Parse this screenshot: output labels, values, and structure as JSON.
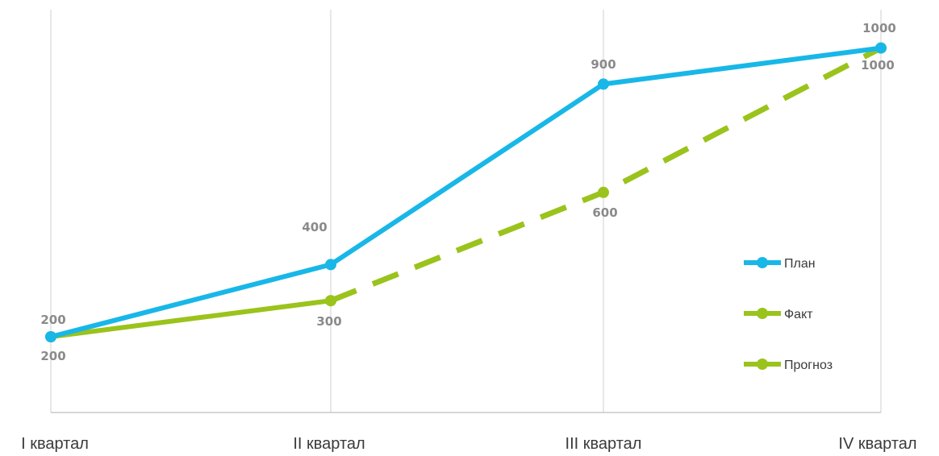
{
  "chart_data": {
    "type": "line",
    "categories": [
      "I квартал",
      "II квартал",
      "III квартал",
      "IV квартал"
    ],
    "ylim": [
      0,
      1100
    ],
    "grid": "vertical",
    "legend_position": "right",
    "series": [
      {
        "name": "План",
        "values": [
          200,
          400,
          900,
          1000
        ],
        "color": "#18b7e8",
        "style": "solid"
      },
      {
        "name": "Факт",
        "values": [
          200,
          300,
          null,
          null
        ],
        "color": "#9ac31c",
        "style": "solid"
      },
      {
        "name": "Прогноз",
        "values": [
          null,
          300,
          600,
          1000
        ],
        "color": "#9ac31c",
        "style": "dashed"
      }
    ],
    "data_labels": {
      "План": [
        "200",
        "400",
        "900",
        "1000"
      ],
      "Факт": [
        "200",
        "300",
        "",
        ""
      ],
      "Прогноз": [
        "",
        "",
        "600",
        "1000"
      ]
    }
  }
}
